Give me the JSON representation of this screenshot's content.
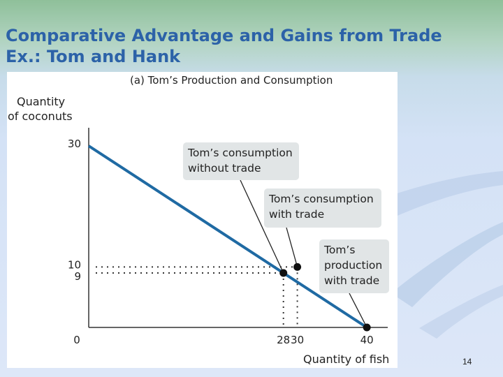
{
  "slide": {
    "title_line1": "Comparative Advantage and Gains from Trade",
    "title_line2": "Ex.: Tom and Hank",
    "slide_number": "14"
  },
  "colors": {
    "title": "#2c62a8",
    "line": "#1f6aa3",
    "callout_bg": "#e1e5e6",
    "point": "#111111"
  },
  "chart_data": {
    "type": "line",
    "title": "(a) Tom’s Production and Consumption",
    "xlabel": "Quantity of fish",
    "ylabel_lines": [
      "Quantity",
      "of coconuts"
    ],
    "x_ticks": [
      {
        "value": 28,
        "label": "28"
      },
      {
        "value": 30,
        "label": "30"
      },
      {
        "value": 40,
        "label": "40"
      }
    ],
    "y_ticks": [
      {
        "value": 9,
        "label": "9"
      },
      {
        "value": 10,
        "label": "10"
      },
      {
        "value": 30,
        "label": "30"
      }
    ],
    "origin_label": "0",
    "xlim": [
      0,
      43
    ],
    "ylim": [
      0,
      33
    ],
    "series": [
      {
        "points": [
          {
            "x": 0,
            "y": 30
          },
          {
            "x": 40,
            "y": 0
          }
        ]
      }
    ],
    "points": [
      {
        "x": 28,
        "y": 9,
        "label_lines": [
          "Tom’s consumption",
          "without trade"
        ],
        "guides": true
      },
      {
        "x": 30,
        "y": 10,
        "label_lines": [
          "Tom’s consumption",
          "with trade"
        ],
        "guides": true
      },
      {
        "x": 40,
        "y": 0,
        "label_lines": [
          "Tom’s",
          "production",
          "with trade"
        ],
        "guides": false
      }
    ]
  }
}
